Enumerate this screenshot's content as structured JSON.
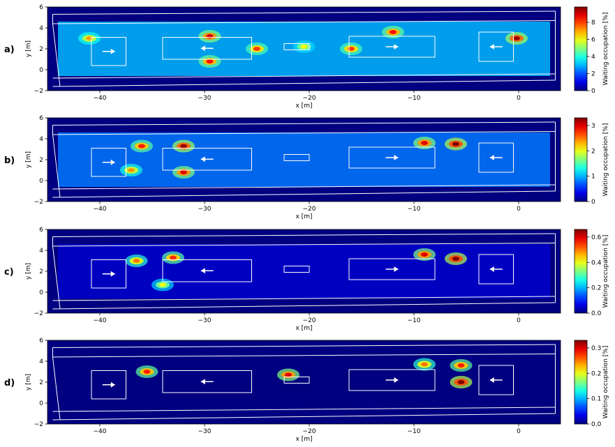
{
  "figure": {
    "xlabel": "x [m]",
    "ylabel": "y [m]",
    "colorbar_label": "Waiting occupation [%]",
    "x_ticks": [
      -40,
      -30,
      -20,
      -10,
      0
    ],
    "y_ticks": [
      -2,
      0,
      2,
      4,
      6
    ],
    "xlim": [
      -45,
      4
    ],
    "ylim": [
      -2,
      6
    ]
  },
  "chart_data": [
    {
      "type": "heatmap",
      "panel_label": "a)",
      "xlabel": "x [m]",
      "ylabel": "y [m]",
      "colorbar_label": "Waiting occupation [%]",
      "colorbar_range": [
        0,
        9.8
      ],
      "colorbar_ticks": [
        0,
        2,
        4,
        6,
        8
      ],
      "hotspots": [
        {
          "x": -29.5,
          "y": 3.2,
          "value": 9.0
        },
        {
          "x": -29.5,
          "y": 0.8,
          "value": 8.5
        },
        {
          "x": -25,
          "y": 2.0,
          "value": 8.0
        },
        {
          "x": -12,
          "y": 3.6,
          "value": 8.5
        },
        {
          "x": -16,
          "y": 2.0,
          "value": 8.0
        },
        {
          "x": -41,
          "y": 3.0,
          "value": 7.0
        },
        {
          "x": -0.2,
          "y": 3.0,
          "value": 9.5
        },
        {
          "x": -20.5,
          "y": 2.2,
          "value": 6.0
        }
      ],
      "background_level": 3.0
    },
    {
      "type": "heatmap",
      "panel_label": "b)",
      "xlabel": "x [m]",
      "ylabel": "y [m]",
      "colorbar_label": "Waiting occupation [%]",
      "colorbar_range": [
        0,
        3.3
      ],
      "colorbar_ticks": [
        0,
        1,
        2,
        3
      ],
      "hotspots": [
        {
          "x": -32,
          "y": 3.3,
          "value": 3.2
        },
        {
          "x": -32,
          "y": 0.8,
          "value": 3.0
        },
        {
          "x": -36,
          "y": 3.3,
          "value": 2.8
        },
        {
          "x": -9,
          "y": 3.6,
          "value": 3.0
        },
        {
          "x": -6,
          "y": 3.5,
          "value": 3.3
        },
        {
          "x": -37,
          "y": 1.0,
          "value": 2.4
        }
      ],
      "background_level": 0.8
    },
    {
      "type": "heatmap",
      "panel_label": "c)",
      "xlabel": "x [m]",
      "ylabel": "y [m]",
      "colorbar_label": "Waiting occupation [%]",
      "colorbar_range": [
        0,
        0.66
      ],
      "colorbar_ticks": [
        0.0,
        0.2,
        0.4,
        0.6
      ],
      "hotspots": [
        {
          "x": -33,
          "y": 3.3,
          "value": 0.55
        },
        {
          "x": -36.5,
          "y": 3.0,
          "value": 0.5
        },
        {
          "x": -6,
          "y": 3.2,
          "value": 0.66
        },
        {
          "x": -9,
          "y": 3.6,
          "value": 0.6
        },
        {
          "x": -34,
          "y": 0.7,
          "value": 0.4
        }
      ],
      "background_level": 0.05
    },
    {
      "type": "heatmap",
      "panel_label": "d)",
      "xlabel": "x [m]",
      "ylabel": "y [m]",
      "colorbar_label": "Waiting occupation [%]",
      "colorbar_range": [
        0,
        0.33
      ],
      "colorbar_ticks": [
        0.0,
        0.1,
        0.2,
        0.3
      ],
      "hotspots": [
        {
          "x": -5.5,
          "y": 2.0,
          "value": 0.33
        },
        {
          "x": -5.5,
          "y": 3.6,
          "value": 0.28
        },
        {
          "x": -22,
          "y": 2.7,
          "value": 0.3
        },
        {
          "x": -35.5,
          "y": 3.0,
          "value": 0.28
        },
        {
          "x": -9,
          "y": 3.7,
          "value": 0.25
        }
      ],
      "background_level": 0.0
    }
  ]
}
